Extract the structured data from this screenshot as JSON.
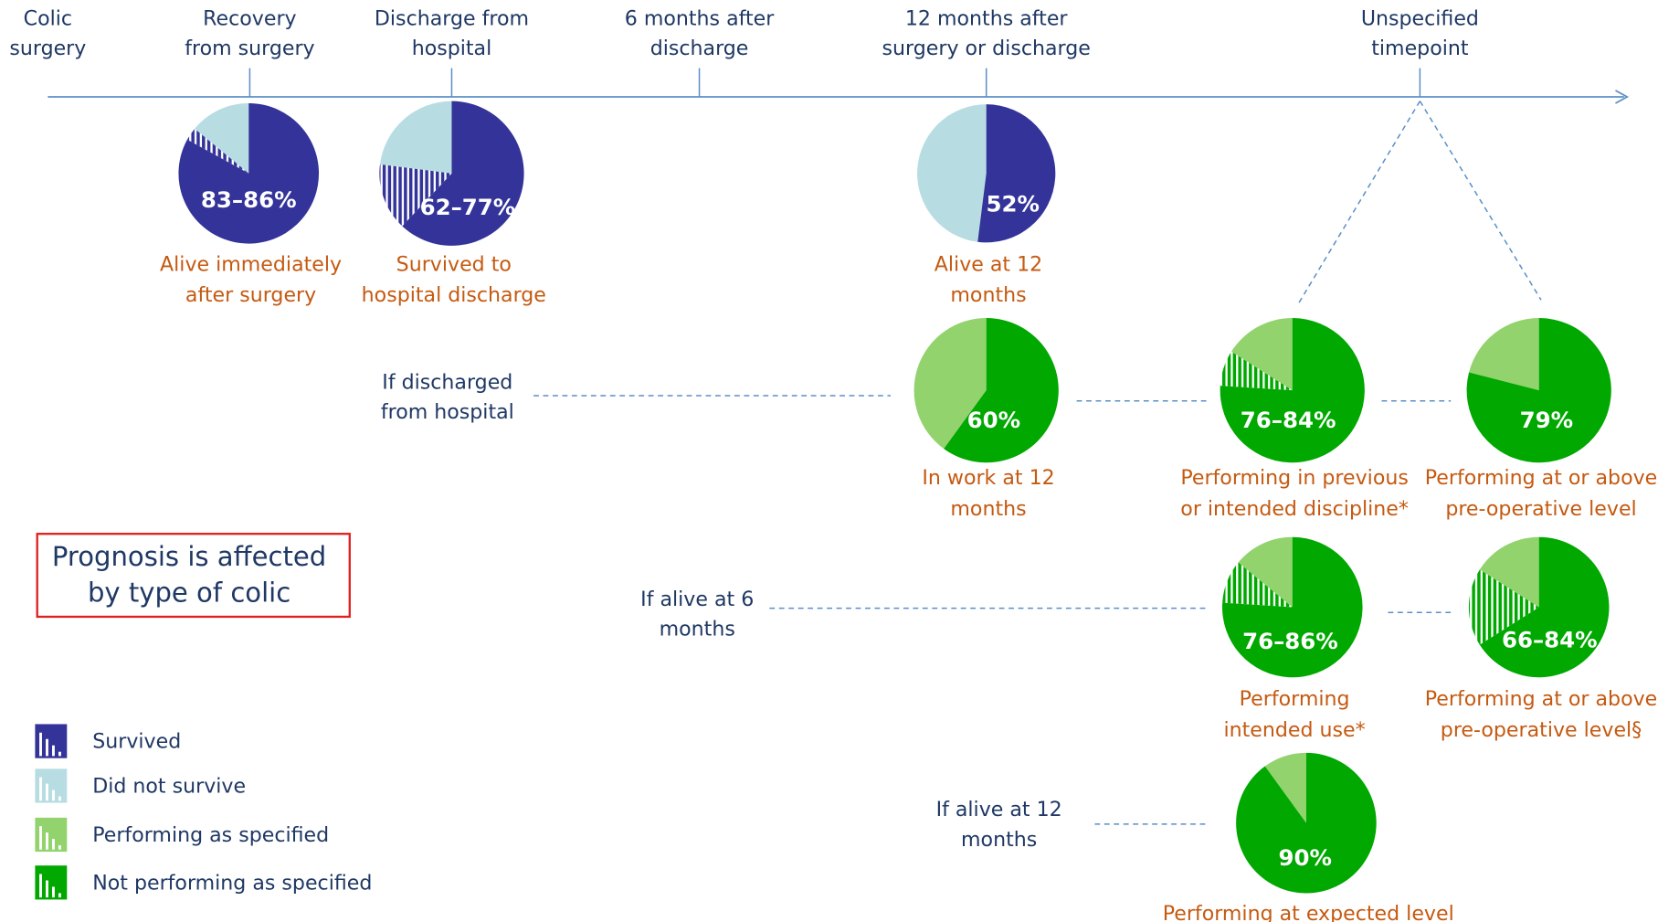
{
  "timeline": [
    {
      "lines": [
        "Colic",
        "surgery"
      ]
    },
    {
      "lines": [
        "Recovery",
        "from surgery"
      ]
    },
    {
      "lines": [
        "Discharge from",
        "hospital"
      ]
    },
    {
      "lines": [
        "6 months after",
        "discharge"
      ]
    },
    {
      "lines": [
        "12 months after",
        "surgery or discharge"
      ]
    },
    {
      "lines": [
        "Unspecified",
        "timepoint"
      ]
    }
  ],
  "pies": [
    {
      "value_label": "83–86%",
      "low": 83,
      "high": 86,
      "color": "#333399",
      "light_color": "#b7dde3",
      "caption": [
        "Alive immediately",
        "after surgery"
      ]
    },
    {
      "value_label": "62–77%",
      "low": 62,
      "high": 77,
      "color": "#333399",
      "light_color": "#b7dde3",
      "caption": [
        "Survived to",
        "hospital discharge"
      ]
    },
    {
      "value_label": "52%",
      "value": 52,
      "color": "#333399",
      "light_color": "#b7dde3",
      "caption": [
        "Alive at 12",
        "months"
      ]
    },
    {
      "value_label": "60%",
      "value": 60,
      "color": "#00a800",
      "light_color": "#92d36e",
      "caption": [
        "In work at 12",
        "months"
      ]
    },
    {
      "value_label": "76–84%",
      "low": 76,
      "high": 84,
      "color": "#00a800",
      "light_color": "#92d36e",
      "caption": [
        "Performing in previous",
        "or intended discipline*"
      ]
    },
    {
      "value_label": "79%",
      "value": 79,
      "color": "#00a800",
      "light_color": "#92d36e",
      "caption": [
        "Performing at or above",
        "pre-operative level"
      ]
    },
    {
      "value_label": "76–86%",
      "low": 76,
      "high": 86,
      "color": "#00a800",
      "light_color": "#92d36e",
      "caption": [
        "Performing",
        "intended use*"
      ]
    },
    {
      "value_label": "66–84%",
      "low": 66,
      "high": 84,
      "color": "#00a800",
      "light_color": "#92d36e",
      "caption": [
        "Performing at or above",
        "pre-operative level§"
      ]
    },
    {
      "value_label": "90%",
      "value": 90,
      "color": "#00a800",
      "light_color": "#92d36e",
      "caption": [
        "Performing at expected level"
      ]
    }
  ],
  "conditions": [
    {
      "lines": [
        "If discharged",
        "from hospital"
      ]
    },
    {
      "lines": [
        "If alive at 6",
        "months"
      ]
    },
    {
      "lines": [
        "If alive at 12",
        "months"
      ]
    }
  ],
  "note": [
    "Prognosis is affected",
    "by type of colic"
  ],
  "legend": [
    {
      "name": "Survived",
      "color": "#333399"
    },
    {
      "name": "Did not survive",
      "color": "#b7dde3"
    },
    {
      "name": "Performing as specified",
      "color": "#92d36e"
    },
    {
      "name": "Not performing as specified",
      "color": "#00a800"
    }
  ]
}
